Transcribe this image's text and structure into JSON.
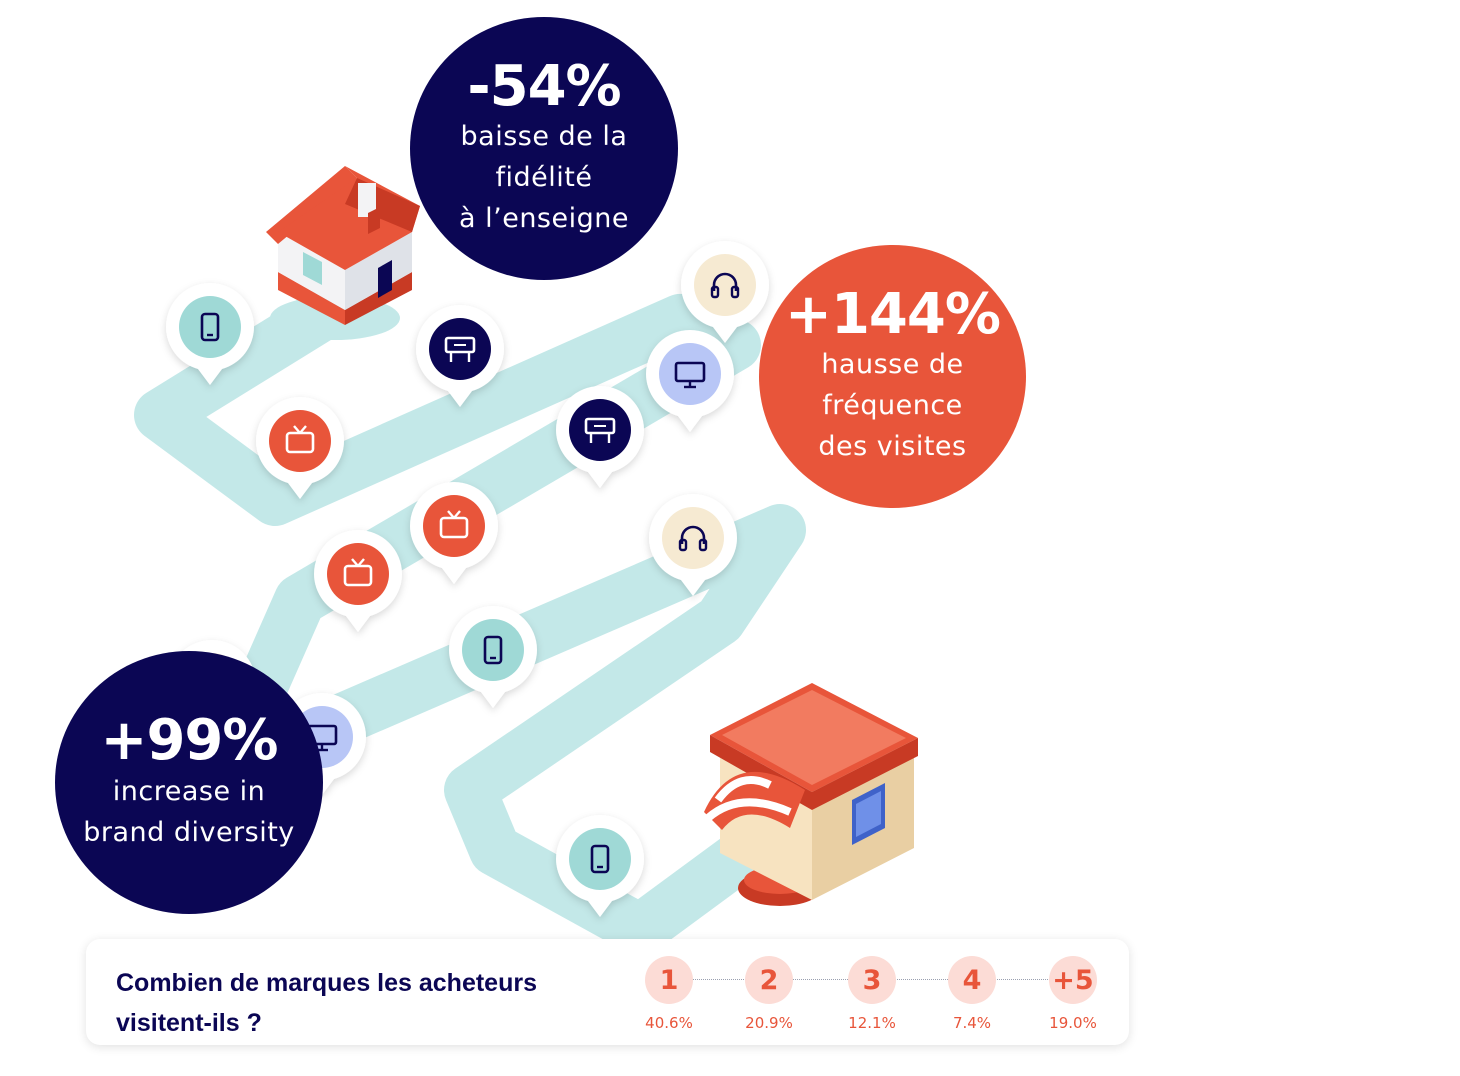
{
  "stats": {
    "loyalty": {
      "value": "-54%",
      "label": "baisse de la\nfidélité\nà l’enseigne"
    },
    "frequency": {
      "value": "+144%",
      "label": "hausse de\nfréquence\ndes visites"
    },
    "diversity": {
      "value": "+99%",
      "label": "increase in\nbrand diversity"
    }
  },
  "icons": [
    "tablet-icon",
    "tv-icon",
    "monitor-icon",
    "headphones-icon",
    "store-sign-icon"
  ],
  "colors": {
    "navy": "#0b0654",
    "coral": "#e8553a",
    "path": "#c3e8e8",
    "pink": "#fcdcd6"
  },
  "question": {
    "text": "Combien de marques les acheteurs visitent-ils ?",
    "options": [
      {
        "label": "1",
        "percent": "40.6%"
      },
      {
        "label": "2",
        "percent": "20.9%"
      },
      {
        "label": "3",
        "percent": "12.1%"
      },
      {
        "label": "4",
        "percent": "7.4%"
      },
      {
        "label": "+5",
        "percent": "19.0%"
      }
    ]
  }
}
